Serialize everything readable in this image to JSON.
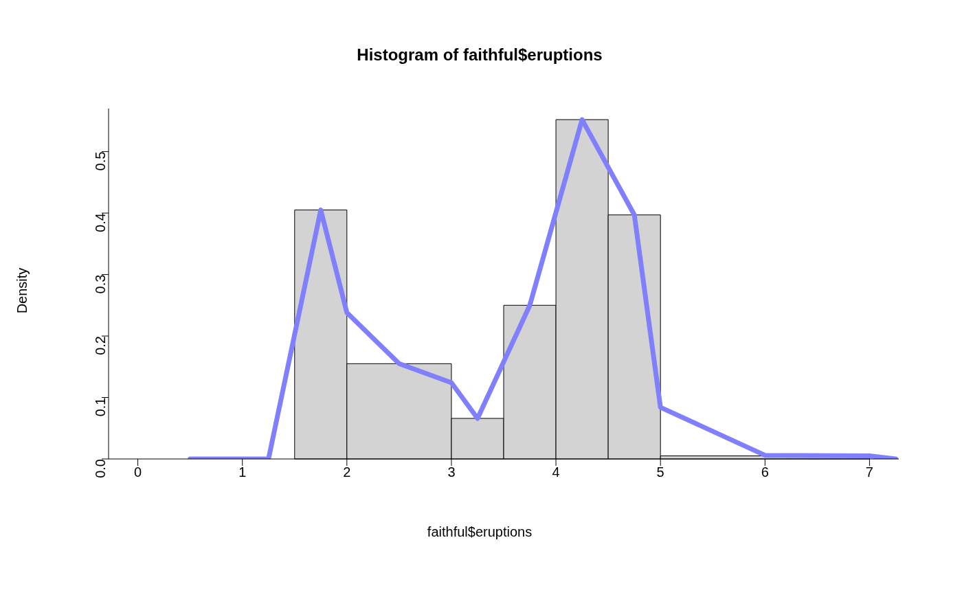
{
  "chart_data": {
    "type": "histogram",
    "title": "Histogram of faithful$eruptions",
    "xlabel": "faithful$eruptions",
    "ylabel": "Density",
    "series": [
      {
        "color": "#d3d3d3",
        "bins": [
          1.5,
          2,
          3,
          3.5,
          4,
          4.5,
          5,
          7
        ],
        "values": [
          0.405,
          0.155,
          0.066,
          0.25,
          0.552,
          0.397,
          0.005
        ]
      },
      {
        "type": "line",
        "color": "#8080ff",
        "x": [
          0.5,
          1.25,
          1.75,
          2,
          2.5,
          3,
          3.25,
          3.75,
          4.25,
          4.75,
          5,
          6,
          7,
          7.25
        ],
        "values": [
          0,
          0,
          0.405,
          0.238,
          0.155,
          0.124,
          0.066,
          0.25,
          0.552,
          0.397,
          0.084,
          0.006,
          0.005,
          0
        ]
      }
    ],
    "xlim": [
      -0.28,
      7.28
    ],
    "xticks": [
      0,
      1,
      2,
      3,
      4,
      5,
      6,
      7
    ],
    "ylim": [
      0,
      0.57
    ],
    "yticks": [
      {
        "value": 0,
        "label": "0.0"
      },
      0.1,
      0.2,
      0.3,
      0.4,
      0.5
    ],
    "grid": false,
    "legend": false
  }
}
